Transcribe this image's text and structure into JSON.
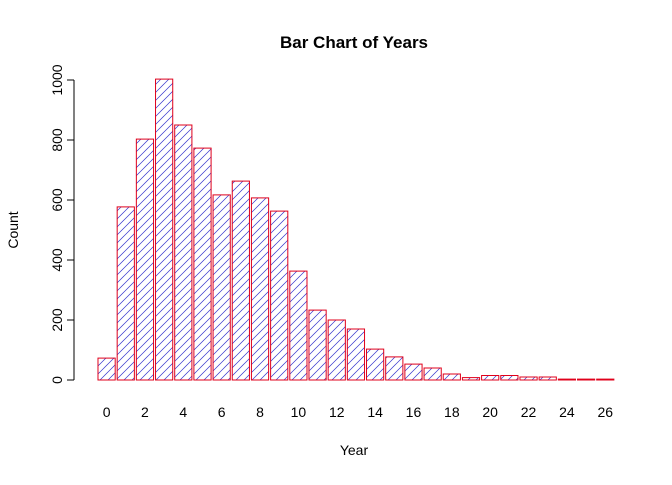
{
  "chart_data": {
    "type": "bar",
    "title": "Bar Chart of Years",
    "xlabel": "Year",
    "ylabel": "Count",
    "categories": [
      "0",
      "1",
      "2",
      "3",
      "4",
      "5",
      "6",
      "7",
      "8",
      "9",
      "10",
      "11",
      "12",
      "13",
      "14",
      "15",
      "16",
      "17",
      "18",
      "19",
      "20",
      "21",
      "22",
      "23",
      "24",
      "25",
      "26"
    ],
    "x_tick_labels": [
      "0",
      "2",
      "4",
      "6",
      "8",
      "10",
      "12",
      "14",
      "16",
      "18",
      "20",
      "22",
      "24",
      "26"
    ],
    "values": [
      73,
      577,
      803,
      1003,
      850,
      773,
      617,
      663,
      607,
      563,
      363,
      233,
      200,
      170,
      103,
      77,
      53,
      40,
      20,
      8,
      15,
      15,
      10,
      10,
      3,
      3,
      3
    ],
    "ylim": [
      0,
      1000
    ],
    "y_ticks": [
      0,
      200,
      400,
      600,
      800,
      1000
    ],
    "y_tick_labels": [
      "0",
      "200",
      "400",
      "600",
      "800",
      "1000"
    ],
    "grid": false,
    "legend": "none",
    "colors": {
      "border": "#e0001b",
      "hatch": "#3333cc",
      "axis": "#000000"
    }
  }
}
